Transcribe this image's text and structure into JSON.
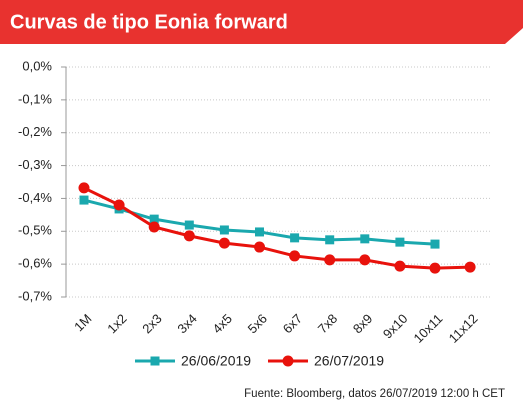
{
  "chart_data": {
    "type": "line",
    "title": "Curvas de tipo Eonia forward",
    "categories": [
      "1M",
      "1x2",
      "2x3",
      "3x4",
      "4x5",
      "5x6",
      "6x7",
      "7x8",
      "8x9",
      "9x10",
      "10x11",
      "11x12"
    ],
    "series": [
      {
        "name": "26/06/2019",
        "color": "#1aa8ae",
        "marker": "square",
        "values": [
          -0.405,
          -0.432,
          -0.463,
          -0.481,
          -0.496,
          -0.502,
          -0.52,
          -0.526,
          -0.523,
          -0.533,
          -0.539,
          null
        ]
      },
      {
        "name": "26/07/2019",
        "color": "#e8120c",
        "marker": "circle",
        "values": [
          -0.368,
          -0.42,
          -0.487,
          -0.514,
          -0.536,
          -0.548,
          -0.575,
          -0.587,
          -0.587,
          -0.606,
          -0.612,
          -0.609
        ]
      }
    ],
    "ylim": [
      -0.7,
      0
    ],
    "yticks": [
      {
        "value": 0,
        "label": "0,0%"
      },
      {
        "value": -0.1,
        "label": "-0,1%"
      },
      {
        "value": -0.2,
        "label": "-0,2%"
      },
      {
        "value": -0.3,
        "label": "-0,3%"
      },
      {
        "value": -0.4,
        "label": "-0,4%"
      },
      {
        "value": -0.5,
        "label": "-0,5%"
      },
      {
        "value": -0.6,
        "label": "-0,6%"
      },
      {
        "value": -0.7,
        "label": "-0,7%"
      }
    ],
    "grid": true,
    "source": "Fuente: Bloomberg, datos 26/07/2019 12:00 h CET"
  }
}
